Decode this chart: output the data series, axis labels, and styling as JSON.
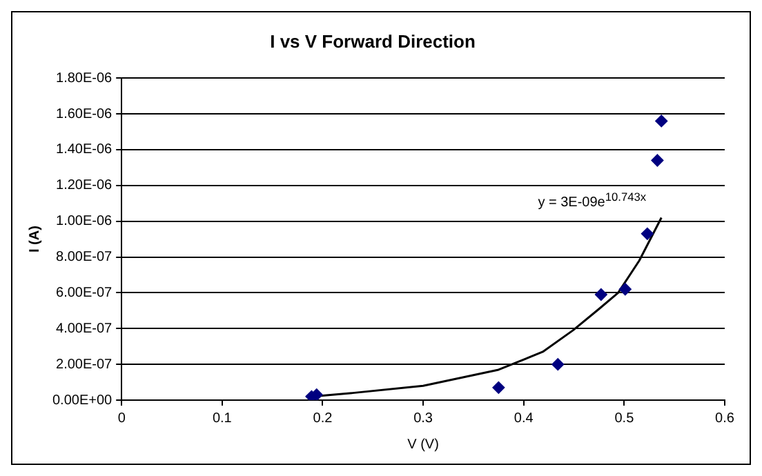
{
  "chart_data": {
    "type": "scatter",
    "title": "I vs V Forward Direction",
    "xlabel": "V (V)",
    "ylabel": "I (A)",
    "series": [
      {
        "color": "#000080",
        "marker": "diamond",
        "x": [
          0.189,
          0.194,
          0.375,
          0.434,
          0.477,
          0.501,
          0.523,
          0.533,
          0.537
        ],
        "values": [
          2e-08,
          3e-08,
          7e-08,
          2e-07,
          5.9e-07,
          6.2e-07,
          9.3e-07,
          1.34e-06,
          1.56e-06
        ]
      },
      {
        "type": "line",
        "color": "#000000",
        "marker": "none",
        "x": [
          0.19,
          0.23,
          0.3,
          0.375,
          0.419,
          0.449,
          0.475,
          0.494,
          0.515,
          0.537
        ],
        "values": [
          2e-08,
          4e-08,
          8e-08,
          1.7e-07,
          2.7e-07,
          3.9e-07,
          5.1e-07,
          6e-07,
          7.8e-07,
          1.02e-06
        ]
      }
    ],
    "annotations": [
      "y = 3E-09e$^{10.743x}$"
    ],
    "xlim": [
      0,
      0.6
    ],
    "xticks": [
      0,
      0.1,
      0.2,
      0.3,
      0.4,
      0.5,
      0.6
    ],
    "ylim": [
      0,
      1.8e-06
    ],
    "yticks": [
      {
        "value": 0,
        "label": "0.00E+00"
      },
      {
        "value": 2e-07,
        "label": "2.00E-07"
      },
      {
        "value": 4e-07,
        "label": "4.00E-07"
      },
      {
        "value": 6e-07,
        "label": "6.00E-07"
      },
      {
        "value": 8e-07,
        "label": "8.00E-07"
      },
      {
        "value": 1e-06,
        "label": "1.00E-06"
      },
      {
        "value": 1.2e-06,
        "label": "1.20E-06"
      },
      {
        "value": 1.4e-06,
        "label": "1.40E-06"
      },
      {
        "value": 1.6e-06,
        "label": "1.60E-06"
      },
      {
        "value": 1.8e-06,
        "label": "1.80E-06"
      }
    ],
    "grid": "y",
    "legend": false
  }
}
